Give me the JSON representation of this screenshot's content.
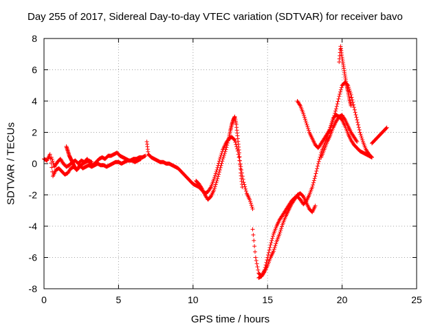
{
  "chart_data": {
    "type": "scatter",
    "title": "Day 255 of 2017, Sidereal Day-to-day VTEC variation (SDTVAR) for receiver bavo",
    "xlabel": "GPS time / hours",
    "ylabel": "SDTVAR / TECUs",
    "xlim": [
      0,
      25
    ],
    "ylim": [
      -8,
      8
    ],
    "xticks": [
      0,
      5,
      10,
      15,
      20,
      25
    ],
    "yticks": [
      -8,
      -6,
      -4,
      -2,
      0,
      2,
      4,
      6,
      8
    ],
    "grid": true,
    "marker": "+",
    "color": "#ff0000",
    "series": [
      {
        "x": [
          0.0,
          0.2,
          0.4,
          0.6,
          0.8,
          1.0,
          1.2,
          1.4,
          1.6,
          1.8,
          2.0,
          2.2,
          2.4,
          2.6,
          2.8,
          3.0,
          3.2,
          3.4,
          3.6,
          3.8,
          4.0,
          4.2,
          4.4,
          4.6,
          4.8,
          5.0,
          5.2,
          5.4,
          5.6,
          5.8,
          6.0,
          6.2,
          6.4,
          6.6,
          6.8
        ],
        "y": [
          0.3,
          0.2,
          0.6,
          -0.8,
          -0.4,
          -0.3,
          -0.5,
          -0.7,
          -0.6,
          -0.3,
          -0.2,
          -0.4,
          -0.1,
          -0.3,
          -0.2,
          -0.1,
          -0.2,
          -0.1,
          0.0,
          -0.1,
          -0.1,
          -0.2,
          -0.1,
          0.0,
          0.1,
          0.1,
          0.0,
          0.1,
          0.2,
          0.2,
          0.3,
          0.3,
          0.4,
          0.4,
          0.5
        ]
      },
      {
        "x": [
          0.5,
          0.7,
          0.9,
          1.1,
          1.3,
          1.5,
          1.7,
          1.9,
          2.1,
          2.3,
          2.5,
          2.7,
          2.9,
          3.1,
          3.3,
          3.5,
          3.7,
          3.9,
          4.1,
          4.3,
          4.5,
          4.7,
          4.9,
          5.1,
          5.3,
          5.5,
          5.7,
          5.9,
          6.1,
          6.3,
          6.5
        ],
        "y": [
          0.4,
          -0.2,
          0.1,
          0.3,
          0.0,
          -0.2,
          -0.1,
          0.1,
          0.2,
          0.0,
          0.2,
          0.1,
          0.3,
          0.0,
          -0.1,
          0.1,
          0.3,
          0.4,
          0.3,
          0.5,
          0.5,
          0.6,
          0.7,
          0.5,
          0.4,
          0.3,
          0.2,
          0.2,
          0.1,
          0.2,
          0.3
        ]
      },
      {
        "x": [
          1.5,
          1.6,
          1.7,
          1.8,
          1.9,
          2.0,
          2.1,
          2.2,
          2.4,
          2.6,
          2.8,
          3.0,
          3.2
        ],
        "y": [
          1.1,
          0.8,
          0.5,
          0.3,
          0.1,
          -0.1,
          -0.3,
          -0.4,
          -0.2,
          0.0,
          0.1,
          0.2,
          0.1
        ]
      },
      {
        "x": [
          6.9,
          7.0,
          7.2,
          7.4,
          7.6,
          7.8,
          8.0,
          8.2,
          8.4,
          8.6,
          8.8,
          9.0,
          9.2,
          9.4,
          9.6,
          9.8,
          10.0,
          10.2,
          10.4,
          10.6,
          10.8,
          11.0,
          11.2,
          11.4,
          11.6,
          11.8,
          12.0,
          12.2,
          12.4,
          12.6,
          12.8,
          13.0,
          13.2,
          13.4,
          13.6,
          13.8,
          14.0
        ],
        "y": [
          1.4,
          0.6,
          0.4,
          0.3,
          0.2,
          0.1,
          0.1,
          0.0,
          0.0,
          -0.1,
          -0.2,
          -0.3,
          -0.5,
          -0.7,
          -0.9,
          -1.1,
          -1.3,
          -1.4,
          -1.5,
          -1.7,
          -1.9,
          -1.8,
          -1.5,
          -1.0,
          -0.4,
          0.3,
          0.9,
          1.3,
          1.6,
          1.7,
          1.5,
          0.8,
          -0.2,
          -1.2,
          -1.9,
          -2.3,
          -2.9
        ]
      },
      {
        "x": [
          10.2,
          10.4,
          10.6,
          10.8,
          11.0,
          11.2,
          11.4,
          11.6,
          11.8,
          12.0,
          12.2,
          12.4,
          12.5,
          12.6,
          12.7,
          12.8,
          12.9,
          13.0,
          13.1,
          13.2,
          13.3
        ],
        "y": [
          -1.1,
          -1.3,
          -1.6,
          -2.0,
          -2.3,
          -2.1,
          -1.7,
          -1.1,
          -0.4,
          0.3,
          0.9,
          1.6,
          2.1,
          2.5,
          2.8,
          3.0,
          2.5,
          1.6,
          0.7,
          -0.6,
          -1.5
        ]
      },
      {
        "x": [
          14.0,
          14.2,
          14.4,
          14.6,
          14.8,
          15.0,
          15.2,
          15.4,
          15.6,
          15.8,
          16.0,
          16.2,
          16.4,
          16.6,
          16.8,
          17.0,
          17.2,
          17.4,
          17.6,
          17.8,
          18.0,
          18.2,
          18.4,
          18.6,
          18.8,
          19.0,
          19.2,
          19.4,
          19.6,
          19.8,
          20.0,
          20.2,
          20.4,
          20.6,
          20.8,
          21.0,
          21.2,
          21.4,
          21.6,
          21.8,
          22.0
        ],
        "y": [
          -4.2,
          -6.0,
          -7.0,
          -7.2,
          -6.8,
          -6.0,
          -5.2,
          -4.5,
          -4.0,
          -3.6,
          -3.3,
          -3.0,
          -2.7,
          -2.4,
          -2.2,
          -2.1,
          -2.3,
          -2.6,
          -2.4,
          -2.0,
          -1.5,
          -0.8,
          0.0,
          0.7,
          1.2,
          1.7,
          2.3,
          2.9,
          3.1,
          3.0,
          2.8,
          2.4,
          1.9,
          1.5,
          1.2,
          1.0,
          0.8,
          0.7,
          0.6,
          0.5,
          0.4
        ]
      },
      {
        "x": [
          14.4,
          14.6,
          14.8,
          15.0,
          15.2,
          15.4,
          15.6,
          15.8,
          16.0,
          16.2,
          16.4,
          16.6,
          16.8,
          17.0,
          17.2,
          17.4,
          17.6,
          17.8,
          18.0,
          18.2
        ],
        "y": [
          -7.3,
          -7.2,
          -6.9,
          -6.5,
          -6.0,
          -5.6,
          -5.0,
          -4.5,
          -3.9,
          -3.4,
          -3.0,
          -2.6,
          -2.3,
          -2.0,
          -1.9,
          -2.1,
          -2.5,
          -2.9,
          -3.1,
          -2.7
        ]
      },
      {
        "x": [
          17.0,
          17.2,
          17.4,
          17.6,
          17.8,
          18.0,
          18.2,
          18.4,
          18.6,
          18.8,
          19.0,
          19.2,
          19.4,
          19.6,
          19.8,
          20.0,
          20.2,
          20.4,
          20.6,
          20.8,
          21.0,
          21.2,
          21.4,
          21.6,
          21.8,
          22.0
        ],
        "y": [
          4.0,
          3.7,
          3.2,
          2.6,
          2.0,
          1.6,
          1.2,
          1.0,
          1.3,
          1.6,
          1.9,
          2.2,
          2.8,
          3.5,
          4.3,
          5.0,
          5.2,
          5.0,
          4.4,
          3.6,
          2.8,
          2.0,
          1.4,
          0.9,
          0.6,
          0.4
        ]
      },
      {
        "x": [
          18.6,
          18.8,
          19.0,
          19.2,
          19.4,
          19.6,
          19.8,
          20.0,
          20.2,
          20.4,
          20.6,
          20.8,
          21.0
        ],
        "y": [
          0.4,
          0.9,
          1.4,
          1.8,
          2.3,
          2.7,
          3.0,
          3.1,
          2.8,
          2.4,
          2.0,
          1.7,
          1.4
        ]
      },
      {
        "x": [
          19.8,
          19.9,
          20.0,
          20.1,
          20.2,
          20.3,
          20.4,
          20.5,
          20.6
        ],
        "y": [
          6.5,
          7.5,
          6.8,
          6.2,
          5.6,
          5.0,
          4.6,
          4.1,
          3.7
        ]
      },
      {
        "x": [
          22.0,
          22.2,
          22.4,
          22.6,
          22.8,
          23.0
        ],
        "y": [
          1.3,
          1.5,
          1.7,
          1.9,
          2.1,
          2.3
        ]
      }
    ]
  }
}
